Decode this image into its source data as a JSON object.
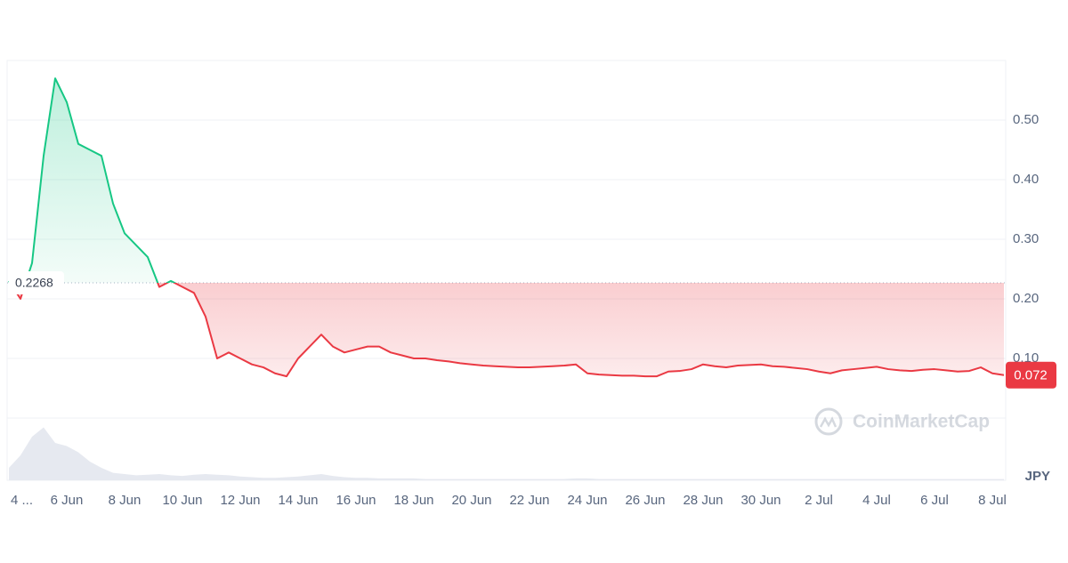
{
  "chart_data": {
    "type": "line",
    "currency": "JPY",
    "watermark": "CoinMarketCap",
    "baseline": 0.2268,
    "up_color": "#16c784",
    "down_color": "#ea3943",
    "volume_color": "#e6e9f0",
    "xlim": [
      0,
      86
    ],
    "xticks": [
      {
        "value": 0,
        "label": "4 ..."
      },
      {
        "value": 5,
        "label": "6 Jun"
      },
      {
        "value": 10,
        "label": "8 Jun"
      },
      {
        "value": 15,
        "label": "10 Jun"
      },
      {
        "value": 20,
        "label": "12 Jun"
      },
      {
        "value": 25,
        "label": "14 Jun"
      },
      {
        "value": 30,
        "label": "16 Jun"
      },
      {
        "value": 35,
        "label": "18 Jun"
      },
      {
        "value": 40,
        "label": "20 Jun"
      },
      {
        "value": 45,
        "label": "22 Jun"
      },
      {
        "value": 50,
        "label": "24 Jun"
      },
      {
        "value": 55,
        "label": "26 Jun"
      },
      {
        "value": 60,
        "label": "28 Jun"
      },
      {
        "value": 65,
        "label": "30 Jun"
      },
      {
        "value": 70,
        "label": "2 Jul"
      },
      {
        "value": 75,
        "label": "4 Jul"
      },
      {
        "value": 80,
        "label": "6 Jul"
      },
      {
        "value": 85,
        "label": "8 Jul"
      }
    ],
    "ylim": [
      0,
      0.6
    ],
    "yticks": [
      {
        "value": 0.1,
        "label": "0.10"
      },
      {
        "value": 0.2,
        "label": "0.20"
      },
      {
        "value": 0.3,
        "label": "0.30"
      },
      {
        "value": 0.4,
        "label": "0.40"
      },
      {
        "value": 0.5,
        "label": "0.50"
      }
    ],
    "series": [
      {
        "values": [
          0.23,
          0.2,
          0.26,
          0.44,
          0.57,
          0.53,
          0.46,
          0.45,
          0.44,
          0.36,
          0.31,
          0.29,
          0.27,
          0.22,
          0.23,
          0.22,
          0.21,
          0.17,
          0.1,
          0.11,
          0.1,
          0.09,
          0.085,
          0.075,
          0.07,
          0.1,
          0.12,
          0.14,
          0.12,
          0.11,
          0.115,
          0.12,
          0.12,
          0.11,
          0.105,
          0.1,
          0.1,
          0.097,
          0.095,
          0.092,
          0.09,
          0.088,
          0.087,
          0.086,
          0.085,
          0.085,
          0.086,
          0.087,
          0.088,
          0.09,
          0.075,
          0.073,
          0.072,
          0.071,
          0.071,
          0.07,
          0.07,
          0.078,
          0.079,
          0.082,
          0.09,
          0.087,
          0.085,
          0.088,
          0.089,
          0.09,
          0.087,
          0.086,
          0.084,
          0.082,
          0.078,
          0.075,
          0.08,
          0.082,
          0.084,
          0.086,
          0.082,
          0.08,
          0.079,
          0.081,
          0.082,
          0.08,
          0.078,
          0.079,
          0.085,
          0.075,
          0.072
        ]
      }
    ],
    "volume": [
      20,
      40,
      70,
      85,
      60,
      55,
      45,
      30,
      20,
      12,
      10,
      8,
      9,
      10,
      8,
      7,
      9,
      10,
      9,
      8,
      6,
      5,
      4,
      4,
      5,
      6,
      8,
      10,
      7,
      5,
      4,
      4,
      3,
      3,
      3,
      3,
      2,
      2,
      2,
      2,
      2,
      2,
      2,
      2,
      2,
      2,
      2,
      2,
      2,
      3,
      3,
      2,
      2,
      2,
      2,
      2,
      2,
      2,
      2,
      2,
      2,
      2,
      2,
      2,
      2,
      2,
      2,
      2,
      2,
      2,
      2,
      2,
      2,
      2,
      2,
      2,
      2,
      2,
      2,
      2,
      2,
      2,
      2,
      2,
      2,
      2,
      2
    ],
    "volume_lim": [
      0,
      100
    ]
  }
}
